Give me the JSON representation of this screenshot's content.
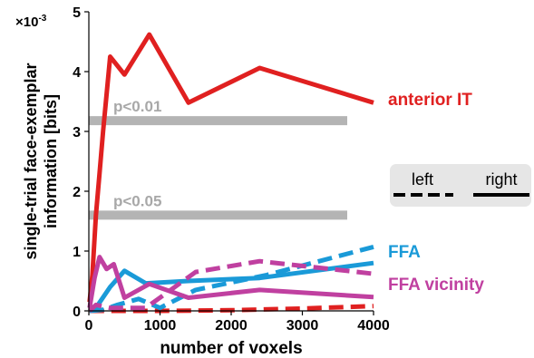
{
  "chart_data": {
    "type": "line",
    "xlabel": "number of voxels",
    "ylabel_line1": "single-trial face-exemplar",
    "ylabel_line2": "information [bits]",
    "y_multiplier": "×10",
    "y_multiplier_exp": "-3",
    "xlim": [
      0,
      4000
    ],
    "ylim": [
      0,
      5
    ],
    "x_ticks": [
      "0",
      "1000",
      "2000",
      "3000",
      "4000"
    ],
    "y_ticks": [
      "0",
      "1",
      "2",
      "3",
      "4",
      "5"
    ],
    "thresholds": [
      {
        "label": "p<0.01",
        "value": 3.18
      },
      {
        "label": "p<0.05",
        "value": 1.6
      }
    ],
    "threshold_color": "#b4b4b4",
    "legend": {
      "left": "left",
      "right": "right",
      "placement": "right"
    },
    "series": [
      {
        "name": "anterior IT",
        "hemisphere": "right",
        "color": "#e02020",
        "x": [
          10,
          50,
          100,
          150,
          200,
          300,
          500,
          850,
          1400,
          2400,
          4000
        ],
        "y": [
          0.15,
          0.6,
          1.6,
          2.3,
          3.0,
          4.25,
          3.95,
          4.62,
          3.48,
          4.06,
          3.48
        ]
      },
      {
        "name": "anterior IT",
        "hemisphere": "left",
        "color": "#e02020",
        "x": [
          10,
          100,
          500,
          1000,
          2000,
          3000,
          4000
        ],
        "y": [
          0.0,
          0.0,
          0.0,
          0.0,
          0.01,
          0.04,
          0.08
        ]
      },
      {
        "name": "FFA",
        "hemisphere": "right",
        "color": "#1a9ad8",
        "x": [
          10,
          100,
          300,
          500,
          800,
          1400,
          2400,
          4000
        ],
        "y": [
          0.02,
          0.05,
          0.4,
          0.67,
          0.46,
          0.5,
          0.55,
          0.8
        ]
      },
      {
        "name": "FFA",
        "hemisphere": "left",
        "color": "#1a9ad8",
        "x": [
          10,
          200,
          400,
          700,
          1000,
          1500,
          2500,
          4000
        ],
        "y": [
          0.0,
          0.02,
          0.1,
          0.2,
          0.05,
          0.35,
          0.6,
          1.07
        ]
      },
      {
        "name": "FFA vicinity",
        "hemisphere": "right",
        "color": "#c040a0",
        "x": [
          10,
          80,
          150,
          250,
          350,
          500,
          850,
          1400,
          2400,
          4000
        ],
        "y": [
          0.05,
          0.55,
          0.9,
          0.7,
          0.78,
          0.22,
          0.45,
          0.22,
          0.35,
          0.23
        ]
      },
      {
        "name": "FFA vicinity",
        "hemisphere": "left",
        "color": "#c040a0",
        "x": [
          10,
          100,
          300,
          800,
          1500,
          2400,
          4000
        ],
        "y": [
          0.0,
          0.1,
          0.05,
          0.05,
          0.65,
          0.83,
          0.62
        ]
      }
    ],
    "series_labels": [
      {
        "text": "anterior IT",
        "color": "#e02020"
      },
      {
        "text": "FFA",
        "color": "#1a9ad8"
      },
      {
        "text": "FFA vicinity",
        "color": "#c040a0"
      }
    ]
  }
}
